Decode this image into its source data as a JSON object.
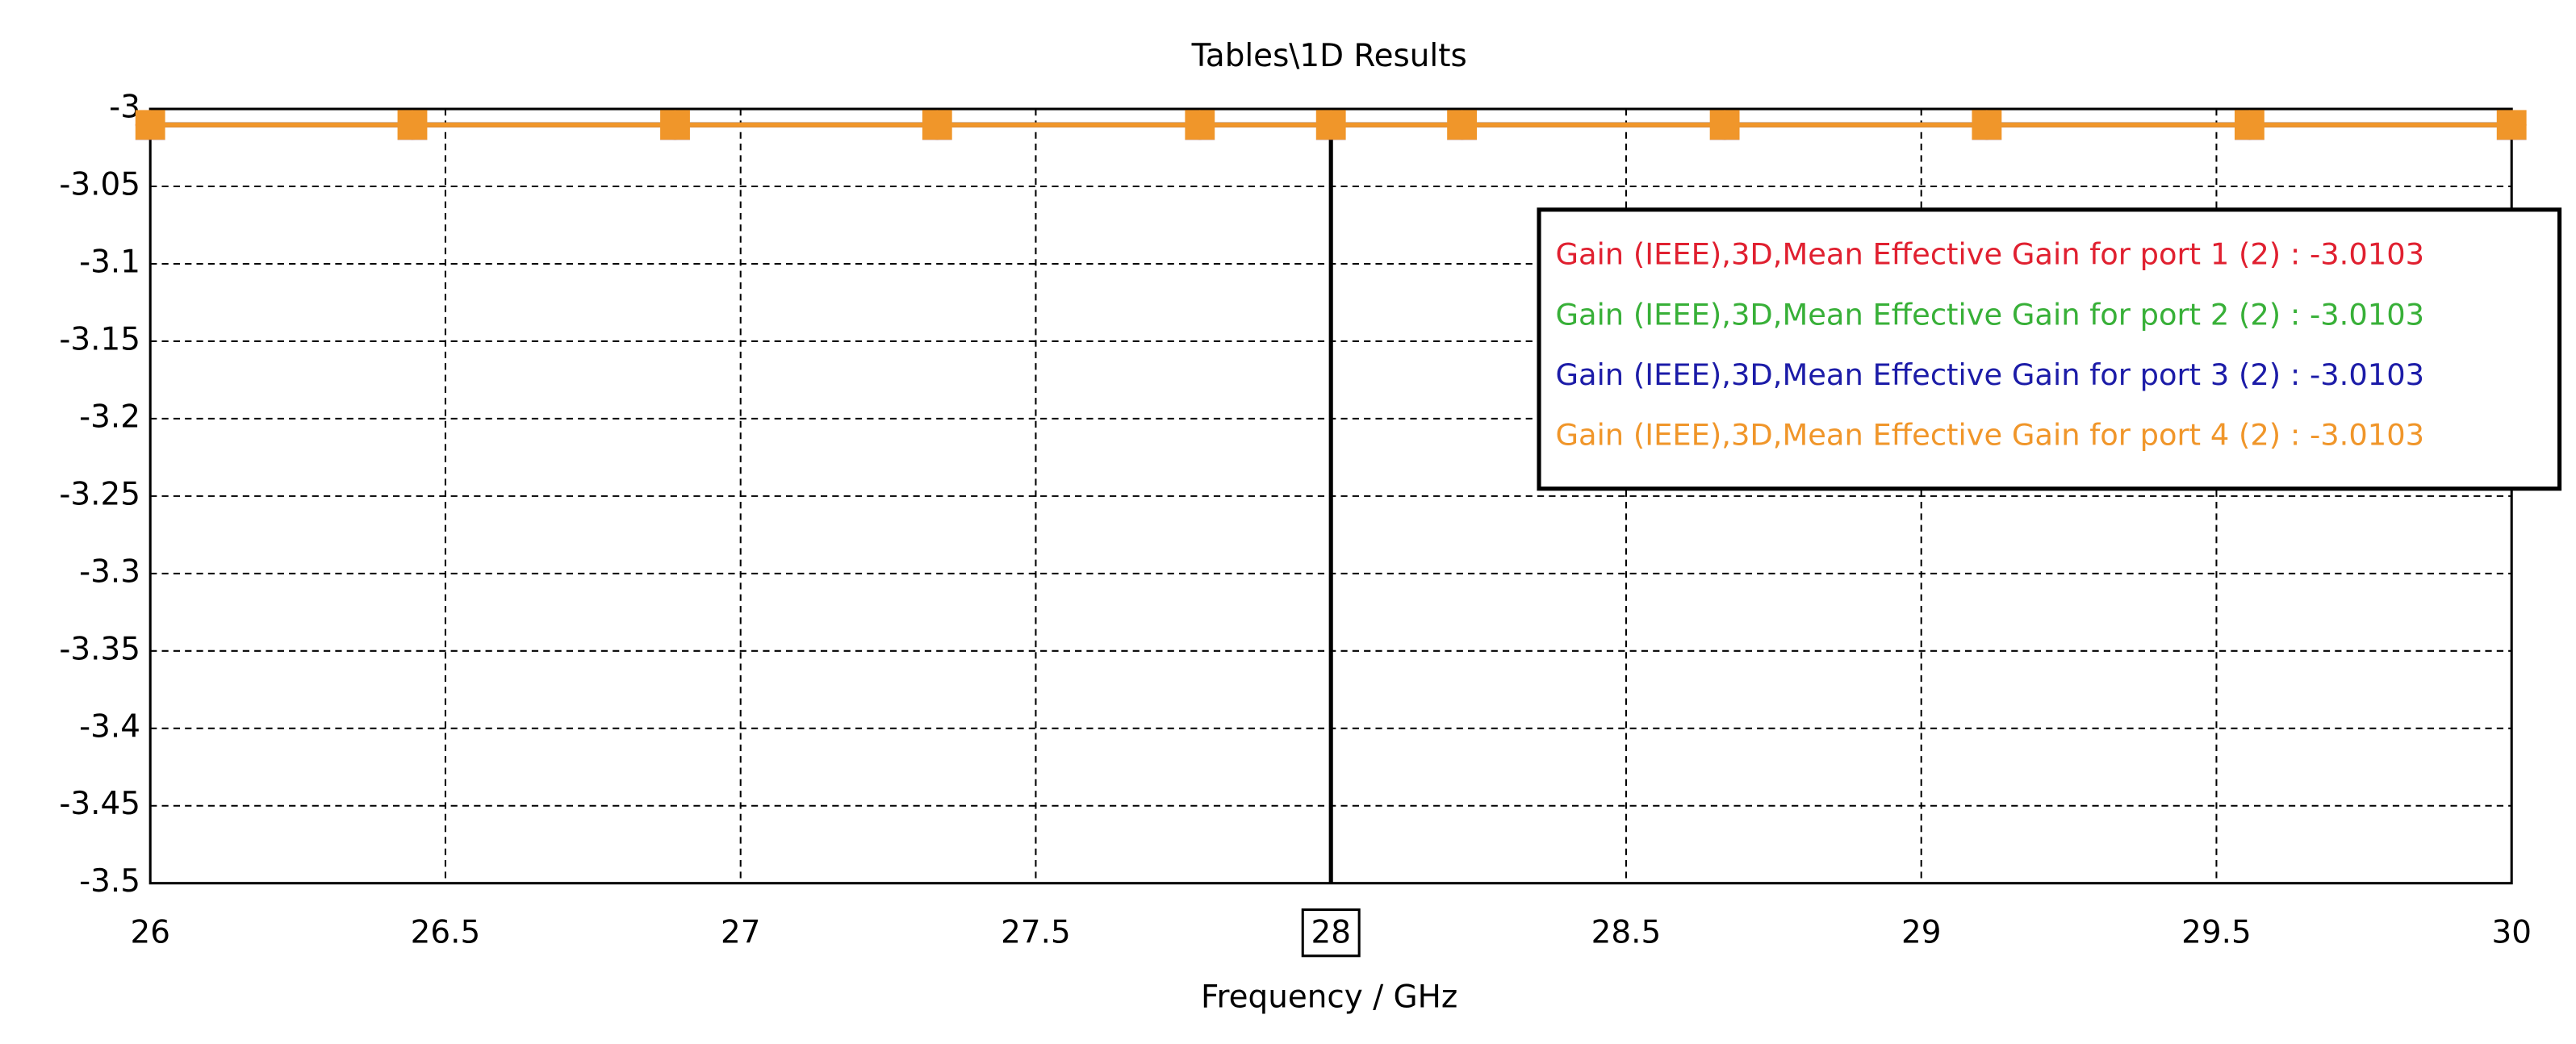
{
  "chart_data": {
    "type": "line",
    "title": "Tables\\1D Results",
    "x_label": "Frequency / GHz",
    "x": [
      26,
      26.444,
      26.889,
      27.333,
      27.778,
      28,
      28.222,
      28.667,
      29.111,
      29.556,
      30
    ],
    "series": [
      {
        "name": "Gain (IEEE),3D,Mean Effective Gain for port 1 (2) : -3.0103",
        "color": "#e02030",
        "marker": "circle",
        "values": [
          -3.0103,
          -3.0103,
          -3.0103,
          -3.0103,
          -3.0103,
          -3.0103,
          -3.0103,
          -3.0103,
          -3.0103,
          -3.0103,
          -3.0103
        ]
      },
      {
        "name": "Gain (IEEE),3D,Mean Effective Gain for port 2 (2) : -3.0103",
        "color": "#38b038",
        "marker": "diamond",
        "values": [
          -3.0103,
          -3.0103,
          -3.0103,
          -3.0103,
          -3.0103,
          -3.0103,
          -3.0103,
          -3.0103,
          -3.0103,
          -3.0103,
          -3.0103
        ]
      },
      {
        "name": "Gain (IEEE),3D,Mean Effective Gain for port 3 (2) : -3.0103",
        "color": "#1c1ca8",
        "marker": "triangle",
        "values": [
          -3.0103,
          -3.0103,
          -3.0103,
          -3.0103,
          -3.0103,
          -3.0103,
          -3.0103,
          -3.0103,
          -3.0103,
          -3.0103,
          -3.0103
        ]
      },
      {
        "name": "Gain (IEEE),3D,Mean Effective Gain for port 4 (2) : -3.0103",
        "color": "#f0962a",
        "marker": "square",
        "values": [
          -3.0103,
          -3.0103,
          -3.0103,
          -3.0103,
          -3.0103,
          -3.0103,
          -3.0103,
          -3.0103,
          -3.0103,
          -3.0103,
          -3.0103
        ]
      }
    ],
    "xlim": [
      26,
      30
    ],
    "xticks": [
      26,
      26.5,
      27,
      27.5,
      28,
      28.5,
      29,
      29.5,
      30
    ],
    "ylim": [
      -3.5,
      -3
    ],
    "yticks": [
      -3,
      -3.05,
      -3.1,
      -3.15,
      -3.2,
      -3.25,
      -3.3,
      -3.35,
      -3.4,
      -3.45,
      -3.5
    ],
    "grid": true,
    "legend": "upper right",
    "x_marker": 28
  }
}
